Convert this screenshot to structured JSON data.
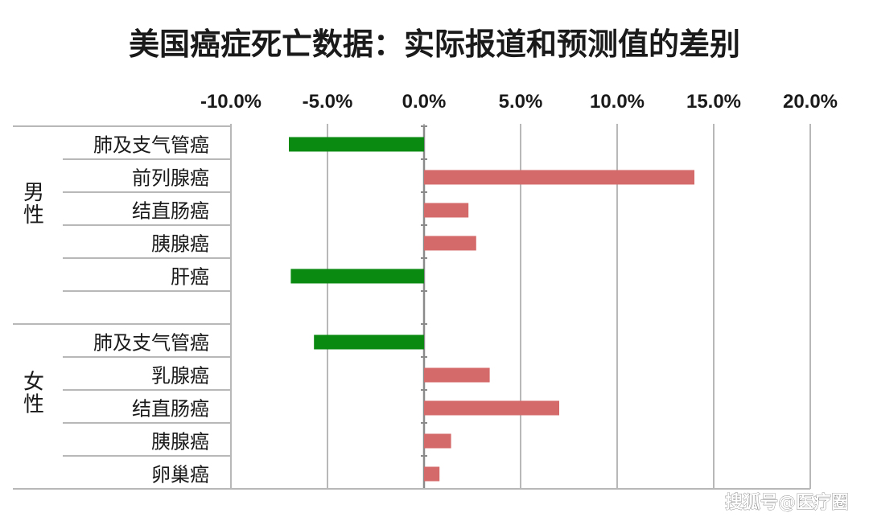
{
  "chart_data": {
    "type": "bar",
    "orientation": "horizontal",
    "title": "美国癌症死亡数据：实际报道和预测值的差别",
    "xlim": [
      -10,
      20
    ],
    "x_ticks": [
      "-10.0%",
      "-5.0%",
      "0.0%",
      "5.0%",
      "10.0%",
      "15.0%",
      "20.0%"
    ],
    "grid": true,
    "groups": [
      {
        "name": "男性",
        "categories": [
          "肺及支气管癌",
          "前列腺癌",
          "结直肠癌",
          "胰腺癌",
          "肝癌"
        ],
        "values": [
          -7.0,
          14.0,
          2.3,
          2.7,
          -6.9
        ]
      },
      {
        "name": "女性",
        "categories": [
          "肺及支气管癌",
          "乳腺癌",
          "结直肠癌",
          "胰腺癌",
          "卵巢癌"
        ],
        "values": [
          -5.7,
          3.4,
          7.0,
          1.4,
          0.8
        ]
      }
    ],
    "colors": {
      "negative": "#0b8a12",
      "positive": "#d46a6a"
    }
  },
  "watermark": "搜狐号@医疗圈"
}
